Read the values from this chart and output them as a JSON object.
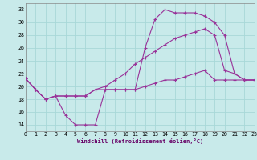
{
  "bg_color": "#c8eaea",
  "grid_color": "#a8d8d8",
  "line_color": "#993399",
  "xlabel": "Windchill (Refroidissement éolien,°C)",
  "xlim": [
    0,
    23
  ],
  "ylim": [
    13,
    33
  ],
  "xticks": [
    0,
    1,
    2,
    3,
    4,
    5,
    6,
    7,
    8,
    9,
    10,
    11,
    12,
    13,
    14,
    15,
    16,
    17,
    18,
    19,
    20,
    21,
    22,
    23
  ],
  "yticks": [
    14,
    16,
    18,
    20,
    22,
    24,
    26,
    28,
    30,
    32
  ],
  "s1_x": [
    0,
    1,
    2,
    3,
    4,
    5,
    6,
    7,
    8,
    9,
    10,
    11,
    12,
    13,
    14,
    15,
    16,
    17,
    18,
    19,
    20,
    21,
    22,
    23
  ],
  "s1_y": [
    21.2,
    19.5,
    18.0,
    18.5,
    15.5,
    14.0,
    14.0,
    14.0,
    19.5,
    19.5,
    19.5,
    19.5,
    26.0,
    30.5,
    32.0,
    31.5,
    31.5,
    31.5,
    31.0,
    30.0,
    28.0,
    22.0,
    21.0,
    21.0
  ],
  "s2_x": [
    0,
    1,
    2,
    3,
    4,
    5,
    6,
    7,
    8,
    9,
    10,
    11,
    12,
    13,
    14,
    15,
    16,
    17,
    18,
    19,
    20,
    21,
    22,
    23
  ],
  "s2_y": [
    21.2,
    19.5,
    18.0,
    18.5,
    18.5,
    18.5,
    18.5,
    19.5,
    20.0,
    21.0,
    22.0,
    23.5,
    24.5,
    25.5,
    26.5,
    27.5,
    28.0,
    28.5,
    29.0,
    28.0,
    22.5,
    22.0,
    21.0,
    21.0
  ],
  "s3_x": [
    0,
    1,
    2,
    3,
    4,
    5,
    6,
    7,
    8,
    9,
    10,
    11,
    12,
    13,
    14,
    15,
    16,
    17,
    18,
    19,
    20,
    21,
    22,
    23
  ],
  "s3_y": [
    21.2,
    19.5,
    18.0,
    18.5,
    18.5,
    18.5,
    18.5,
    19.5,
    19.5,
    19.5,
    19.5,
    19.5,
    20.0,
    20.5,
    21.0,
    21.0,
    21.5,
    22.0,
    22.5,
    21.0,
    21.0,
    21.0,
    21.0,
    21.0
  ]
}
